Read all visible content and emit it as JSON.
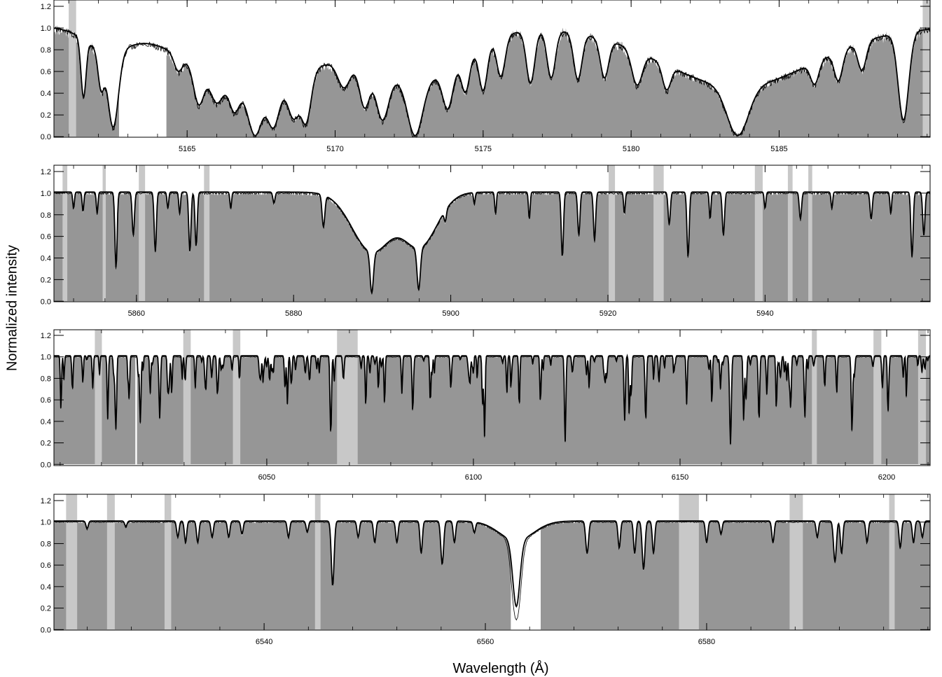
{
  "figure": {
    "ylabel": "Normalized intensity",
    "xlabel": "Wavelength (Å)"
  },
  "colors": {
    "fill": "#969696",
    "mask": "#c8c8c8",
    "thick_line": "#000000",
    "thin_line": "#000000"
  },
  "chart_data": [
    {
      "type": "area",
      "xlim": [
        5160.5,
        5190.1
      ],
      "ylim": [
        0.0,
        1.2
      ],
      "xticks": [
        5165,
        5170,
        5175,
        5180,
        5185
      ],
      "yticks": [
        "0.0",
        "0.2",
        "0.4",
        "0.6",
        "0.8",
        "1.0",
        "1.2"
      ],
      "grey_masks": [
        [
          5161.0,
          5161.25
        ],
        [
          5189.85,
          5190.1
        ]
      ],
      "white_masks": [
        [
          5162.7,
          5164.3
        ]
      ],
      "lines": [
        {
          "x": 5161.5,
          "depth": 0.6,
          "width": 0.12
        },
        {
          "x": 5162.1,
          "depth": 0.45,
          "width": 0.15
        },
        {
          "x": 5162.5,
          "depth": 0.9,
          "width": 0.25
        },
        {
          "x": 5164.7,
          "depth": 0.2,
          "width": 0.2
        },
        {
          "x": 5165.4,
          "depth": 0.55,
          "width": 0.25
        },
        {
          "x": 5166.0,
          "depth": 0.45,
          "width": 0.3
        },
        {
          "x": 5166.6,
          "depth": 0.55,
          "width": 0.25
        },
        {
          "x": 5167.3,
          "depth": 1.0,
          "width": 0.35
        },
        {
          "x": 5167.9,
          "depth": 0.85,
          "width": 0.3
        },
        {
          "x": 5168.6,
          "depth": 0.7,
          "width": 0.3
        },
        {
          "x": 5169.0,
          "depth": 0.8,
          "width": 0.25
        },
        {
          "x": 5170.3,
          "depth": 0.35,
          "width": 0.3
        },
        {
          "x": 5171.0,
          "depth": 0.6,
          "width": 0.25
        },
        {
          "x": 5171.6,
          "depth": 0.75,
          "width": 0.3
        },
        {
          "x": 5172.7,
          "depth": 1.0,
          "width": 0.35
        },
        {
          "x": 5173.8,
          "depth": 0.6,
          "width": 0.25
        },
        {
          "x": 5174.4,
          "depth": 0.45,
          "width": 0.2
        },
        {
          "x": 5175.0,
          "depth": 0.5,
          "width": 0.2
        },
        {
          "x": 5175.6,
          "depth": 0.4,
          "width": 0.2
        },
        {
          "x": 5176.6,
          "depth": 0.5,
          "width": 0.2
        },
        {
          "x": 5177.3,
          "depth": 0.45,
          "width": 0.2
        },
        {
          "x": 5178.2,
          "depth": 0.45,
          "width": 0.2
        },
        {
          "x": 5179.1,
          "depth": 0.4,
          "width": 0.2
        },
        {
          "x": 5180.2,
          "depth": 0.4,
          "width": 0.25
        },
        {
          "x": 5181.2,
          "depth": 0.35,
          "width": 0.2
        },
        {
          "x": 5183.6,
          "depth": 1.0,
          "width": 0.5
        },
        {
          "x": 5186.2,
          "depth": 0.3,
          "width": 0.2
        },
        {
          "x": 5187.0,
          "depth": 0.35,
          "width": 0.2
        },
        {
          "x": 5187.8,
          "depth": 0.3,
          "width": 0.2
        },
        {
          "x": 5189.2,
          "depth": 0.85,
          "width": 0.25
        }
      ],
      "broad": [
        {
          "x": 5167.3,
          "depth": 0.55,
          "width": 3.0
        },
        {
          "x": 5172.7,
          "depth": 0.5,
          "width": 2.2
        },
        {
          "x": 5183.6,
          "depth": 0.55,
          "width": 3.6
        },
        {
          "x": 5162.3,
          "depth": 0.2,
          "width": 1.0
        }
      ],
      "noise": 0.12,
      "seed": 11
    },
    {
      "type": "area",
      "xlim": [
        5849.5,
        5961.0
      ],
      "ylim": [
        0.0,
        1.2
      ],
      "xticks": [
        5860,
        5880,
        5900,
        5920,
        5940
      ],
      "yticks": [
        "0.0",
        "0.2",
        "0.4",
        "0.6",
        "0.8",
        "1.0",
        "1.2"
      ],
      "grey_masks": [
        [
          5850.6,
          5851.2
        ],
        [
          5855.7,
          5856.1
        ],
        [
          5860.3,
          5861.1
        ],
        [
          5868.6,
          5869.3
        ],
        [
          5920.1,
          5920.9
        ],
        [
          5925.8,
          5927.1
        ],
        [
          5938.7,
          5939.7
        ],
        [
          5942.9,
          5943.5
        ],
        [
          5945.5,
          5946.0
        ]
      ],
      "white_masks": [],
      "lines": [
        {
          "x": 5852.0,
          "depth": 0.15,
          "width": 0.15
        },
        {
          "x": 5853.2,
          "depth": 0.18,
          "width": 0.15
        },
        {
          "x": 5855.0,
          "depth": 0.2,
          "width": 0.15
        },
        {
          "x": 5857.4,
          "depth": 0.7,
          "width": 0.2
        },
        {
          "x": 5859.6,
          "depth": 0.4,
          "width": 0.2
        },
        {
          "x": 5862.4,
          "depth": 0.55,
          "width": 0.2
        },
        {
          "x": 5864.0,
          "depth": 0.15,
          "width": 0.15
        },
        {
          "x": 5865.5,
          "depth": 0.2,
          "width": 0.15
        },
        {
          "x": 5866.8,
          "depth": 0.55,
          "width": 0.2
        },
        {
          "x": 5867.6,
          "depth": 0.5,
          "width": 0.2
        },
        {
          "x": 5872.0,
          "depth": 0.15,
          "width": 0.15
        },
        {
          "x": 5877.5,
          "depth": 0.1,
          "width": 0.2
        },
        {
          "x": 5883.8,
          "depth": 0.3,
          "width": 0.25
        },
        {
          "x": 5889.95,
          "depth": 0.85,
          "width": 0.3
        },
        {
          "x": 5895.92,
          "depth": 0.8,
          "width": 0.3
        },
        {
          "x": 5899.3,
          "depth": 0.12,
          "width": 0.2
        },
        {
          "x": 5903.0,
          "depth": 0.1,
          "width": 0.15
        },
        {
          "x": 5905.7,
          "depth": 0.2,
          "width": 0.15
        },
        {
          "x": 5910.0,
          "depth": 0.25,
          "width": 0.15
        },
        {
          "x": 5914.2,
          "depth": 0.6,
          "width": 0.2
        },
        {
          "x": 5916.3,
          "depth": 0.4,
          "width": 0.2
        },
        {
          "x": 5918.3,
          "depth": 0.45,
          "width": 0.2
        },
        {
          "x": 5922.1,
          "depth": 0.2,
          "width": 0.15
        },
        {
          "x": 5927.8,
          "depth": 0.3,
          "width": 0.2
        },
        {
          "x": 5930.2,
          "depth": 0.6,
          "width": 0.2
        },
        {
          "x": 5933.0,
          "depth": 0.25,
          "width": 0.15
        },
        {
          "x": 5934.7,
          "depth": 0.4,
          "width": 0.2
        },
        {
          "x": 5940.0,
          "depth": 0.15,
          "width": 0.15
        },
        {
          "x": 5944.5,
          "depth": 0.25,
          "width": 0.2
        },
        {
          "x": 5948.5,
          "depth": 0.15,
          "width": 0.15
        },
        {
          "x": 5953.5,
          "depth": 0.25,
          "width": 0.2
        },
        {
          "x": 5956.0,
          "depth": 0.2,
          "width": 0.15
        },
        {
          "x": 5958.7,
          "depth": 0.6,
          "width": 0.2
        },
        {
          "x": 5960.2,
          "depth": 0.4,
          "width": 0.2
        }
      ],
      "broad": [
        {
          "x": 5890.0,
          "depth": 0.55,
          "width": 3.6
        },
        {
          "x": 5896.0,
          "depth": 0.5,
          "width": 3.2
        }
      ],
      "noise": 0.04,
      "seed": 23
    },
    {
      "type": "area",
      "xlim": [
        5998.5,
        6210.5
      ],
      "ylim": [
        0.0,
        1.2
      ],
      "xticks": [
        6050,
        6100,
        6150,
        6200
      ],
      "yticks": [
        "0.0",
        "0.2",
        "0.4",
        "0.6",
        "0.8",
        "1.0",
        "1.2"
      ],
      "grey_masks": [
        [
          6008.4,
          6010.1
        ],
        [
          6029.8,
          6031.6
        ],
        [
          6041.8,
          6043.6
        ],
        [
          6067.0,
          6072.0
        ],
        [
          6181.9,
          6183.1
        ],
        [
          6196.8,
          6198.7
        ],
        [
          6207.6,
          6209.5
        ]
      ],
      "white_masks": [
        [
          6018.2,
          6018.6
        ]
      ],
      "lines": [
        {
          "x": 6000.2,
          "depth": 0.5,
          "width": 0.2
        },
        {
          "x": 6003.0,
          "depth": 0.3,
          "width": 0.2
        },
        {
          "x": 6005.5,
          "depth": 0.25,
          "width": 0.2
        },
        {
          "x": 6007.9,
          "depth": 0.3,
          "width": 0.2
        },
        {
          "x": 6011.5,
          "depth": 0.55,
          "width": 0.2
        },
        {
          "x": 6013.5,
          "depth": 0.6,
          "width": 0.25
        },
        {
          "x": 6016.7,
          "depth": 0.4,
          "width": 0.2
        },
        {
          "x": 6019.4,
          "depth": 0.62,
          "width": 0.25
        },
        {
          "x": 6021.8,
          "depth": 0.35,
          "width": 0.2
        },
        {
          "x": 6024.1,
          "depth": 0.58,
          "width": 0.25
        },
        {
          "x": 6027.0,
          "depth": 0.35,
          "width": 0.2
        },
        {
          "x": 6032.7,
          "depth": 0.3,
          "width": 0.2
        },
        {
          "x": 6035.3,
          "depth": 0.25,
          "width": 0.2
        },
        {
          "x": 6038.1,
          "depth": 0.15,
          "width": 0.2
        },
        {
          "x": 6055.0,
          "depth": 0.45,
          "width": 0.2
        },
        {
          "x": 6056.0,
          "depth": 0.2,
          "width": 0.2
        },
        {
          "x": 6065.5,
          "depth": 0.7,
          "width": 0.25
        },
        {
          "x": 6078.5,
          "depth": 0.45,
          "width": 0.2
        },
        {
          "x": 6082.7,
          "depth": 0.35,
          "width": 0.2
        },
        {
          "x": 6085.3,
          "depth": 0.4,
          "width": 0.2
        },
        {
          "x": 6089.6,
          "depth": 0.3,
          "width": 0.2
        },
        {
          "x": 6102.2,
          "depth": 0.45,
          "width": 0.2
        },
        {
          "x": 6102.7,
          "depth": 0.75,
          "width": 0.2
        },
        {
          "x": 6108.1,
          "depth": 0.35,
          "width": 0.2
        },
        {
          "x": 6111.1,
          "depth": 0.35,
          "width": 0.2
        },
        {
          "x": 6116.2,
          "depth": 0.35,
          "width": 0.2
        },
        {
          "x": 6122.2,
          "depth": 0.8,
          "width": 0.25
        },
        {
          "x": 6128.0,
          "depth": 0.3,
          "width": 0.2
        },
        {
          "x": 6136.6,
          "depth": 0.6,
          "width": 0.25
        },
        {
          "x": 6137.7,
          "depth": 0.55,
          "width": 0.2
        },
        {
          "x": 6141.7,
          "depth": 0.6,
          "width": 0.25
        },
        {
          "x": 6151.6,
          "depth": 0.45,
          "width": 0.2
        },
        {
          "x": 6157.7,
          "depth": 0.45,
          "width": 0.2
        },
        {
          "x": 6162.2,
          "depth": 0.82,
          "width": 0.3
        },
        {
          "x": 6165.4,
          "depth": 0.4,
          "width": 0.2
        },
        {
          "x": 6169.1,
          "depth": 0.6,
          "width": 0.25
        },
        {
          "x": 6173.3,
          "depth": 0.5,
          "width": 0.2
        },
        {
          "x": 6176.8,
          "depth": 0.4,
          "width": 0.2
        },
        {
          "x": 6180.2,
          "depth": 0.45,
          "width": 0.2
        },
        {
          "x": 6185.0,
          "depth": 0.3,
          "width": 0.2
        },
        {
          "x": 6187.9,
          "depth": 0.35,
          "width": 0.2
        },
        {
          "x": 6191.6,
          "depth": 0.7,
          "width": 0.25
        },
        {
          "x": 6200.3,
          "depth": 0.45,
          "width": 0.2
        },
        {
          "x": 6204.0,
          "depth": 0.2,
          "width": 0.2
        }
      ],
      "broad": [],
      "small_lines": 140,
      "noise": 0.015,
      "seed": 37
    },
    {
      "type": "area",
      "xlim": [
        6521.0,
        6600.2
      ],
      "ylim": [
        0.0,
        1.2
      ],
      "xticks": [
        6540,
        6560,
        6580
      ],
      "yticks": [
        "0.0",
        "0.2",
        "0.4",
        "0.6",
        "0.8",
        "1.0",
        "1.2"
      ],
      "grey_masks": [
        [
          6522.1,
          6523.1
        ],
        [
          6525.8,
          6526.5
        ],
        [
          6531.0,
          6531.6
        ],
        [
          6544.6,
          6545.1
        ],
        [
          6577.5,
          6579.3
        ],
        [
          6587.5,
          6588.7
        ],
        [
          6596.5,
          6597.0
        ]
      ],
      "white_masks": [
        [
          6562.3,
          6565.0
        ]
      ],
      "lines": [
        {
          "x": 6524.0,
          "depth": 0.07,
          "width": 0.15
        },
        {
          "x": 6527.5,
          "depth": 0.05,
          "width": 0.15
        },
        {
          "x": 6532.2,
          "depth": 0.15,
          "width": 0.15
        },
        {
          "x": 6532.9,
          "depth": 0.2,
          "width": 0.15
        },
        {
          "x": 6534.0,
          "depth": 0.2,
          "width": 0.15
        },
        {
          "x": 6535.3,
          "depth": 0.15,
          "width": 0.15
        },
        {
          "x": 6536.8,
          "depth": 0.15,
          "width": 0.15
        },
        {
          "x": 6538.0,
          "depth": 0.12,
          "width": 0.15
        },
        {
          "x": 6542.2,
          "depth": 0.15,
          "width": 0.15
        },
        {
          "x": 6543.9,
          "depth": 0.1,
          "width": 0.15
        },
        {
          "x": 6546.2,
          "depth": 0.6,
          "width": 0.18
        },
        {
          "x": 6548.5,
          "depth": 0.15,
          "width": 0.15
        },
        {
          "x": 6550.0,
          "depth": 0.2,
          "width": 0.15
        },
        {
          "x": 6552.0,
          "depth": 0.2,
          "width": 0.15
        },
        {
          "x": 6554.2,
          "depth": 0.3,
          "width": 0.15
        },
        {
          "x": 6556.1,
          "depth": 0.4,
          "width": 0.18
        },
        {
          "x": 6557.2,
          "depth": 0.2,
          "width": 0.15
        },
        {
          "x": 6559.0,
          "depth": 0.1,
          "width": 0.15
        },
        {
          "x": 6569.2,
          "depth": 0.3,
          "width": 0.18
        },
        {
          "x": 6572.1,
          "depth": 0.25,
          "width": 0.15
        },
        {
          "x": 6573.5,
          "depth": 0.3,
          "width": 0.15
        },
        {
          "x": 6574.3,
          "depth": 0.45,
          "width": 0.18
        },
        {
          "x": 6575.2,
          "depth": 0.3,
          "width": 0.15
        },
        {
          "x": 6580.0,
          "depth": 0.2,
          "width": 0.15
        },
        {
          "x": 6581.3,
          "depth": 0.12,
          "width": 0.15
        },
        {
          "x": 6586.0,
          "depth": 0.2,
          "width": 0.15
        },
        {
          "x": 6590.0,
          "depth": 0.15,
          "width": 0.15
        },
        {
          "x": 6591.6,
          "depth": 0.38,
          "width": 0.18
        },
        {
          "x": 6592.2,
          "depth": 0.3,
          "width": 0.15
        },
        {
          "x": 6594.5,
          "depth": 0.2,
          "width": 0.15
        },
        {
          "x": 6597.5,
          "depth": 0.25,
          "width": 0.15
        },
        {
          "x": 6598.7,
          "depth": 0.2,
          "width": 0.15
        },
        {
          "x": 6599.5,
          "depth": 0.15,
          "width": 0.15
        }
      ],
      "broad": [
        {
          "x": 6562.8,
          "depth": 0.75,
          "width": 0.45
        },
        {
          "x": 6562.8,
          "depth": 0.18,
          "width": 2.2
        }
      ],
      "thin_extra": {
        "x": 6562.8,
        "depth": 0.55,
        "width": 0.55
      },
      "noise": 0.02,
      "seed": 53
    }
  ]
}
